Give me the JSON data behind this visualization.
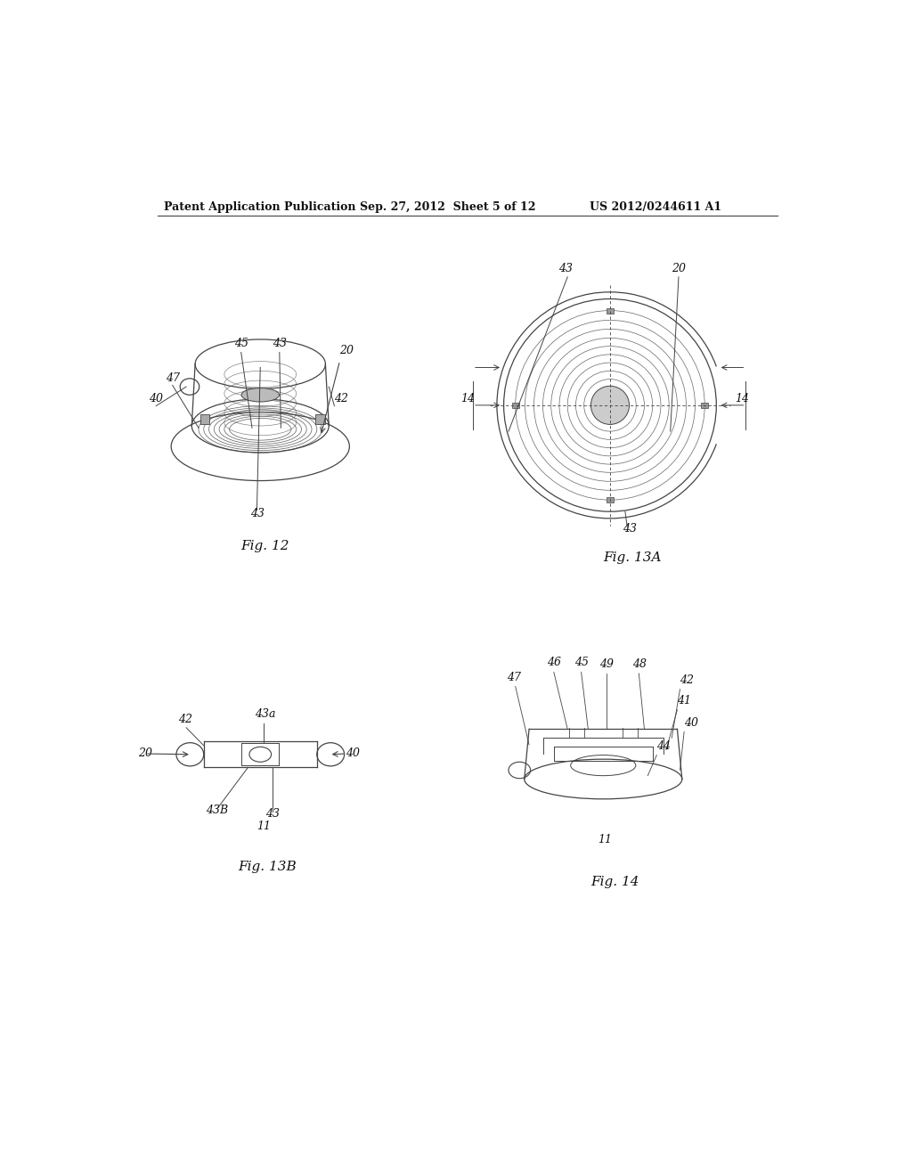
{
  "bg_color": "#ffffff",
  "header_text": "Patent Application Publication",
  "header_date": "Sep. 27, 2012  Sheet 5 of 12",
  "header_patent": "US 2012/0244611 A1",
  "fig12_label": "Fig. 12",
  "fig13a_label": "Fig. 13A",
  "fig13b_label": "Fig. 13B",
  "fig14_label": "Fig. 14",
  "line_color": "#444444",
  "text_color": "#111111"
}
